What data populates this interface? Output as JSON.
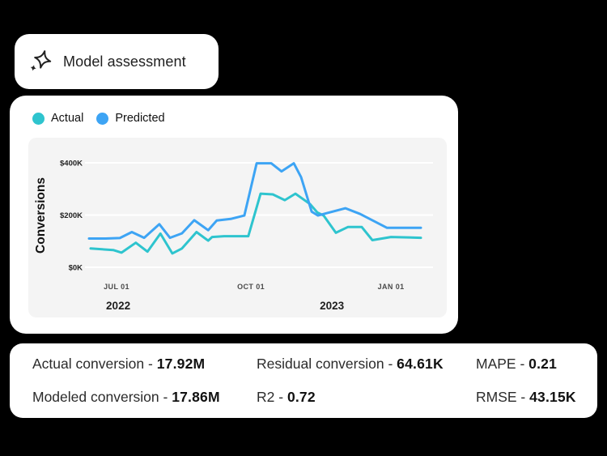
{
  "page": {
    "background": "#000000",
    "card_color": "#ffffff",
    "plot_panel_color": "#f4f4f4"
  },
  "header": {
    "title": "Model assessment",
    "icon": "sparkle-icon"
  },
  "chart_data": {
    "type": "line",
    "title": "",
    "xlabel": "",
    "ylabel": "Conversions",
    "grid": true,
    "legend_position": "top-left",
    "units": "y values = conversions in USD thousands (K); t = fraction of time axis (mid-Jun 2022 to late-Jan 2023)",
    "ylim_k": [
      0,
      480
    ],
    "y_ticks": [
      {
        "label": "$0K",
        "value_k": 0
      },
      {
        "label": "$200K",
        "value_k": 200
      },
      {
        "label": "$400K",
        "value_k": 400
      }
    ],
    "x_ticks": [
      {
        "label": "JUL 01",
        "t": 0.083
      },
      {
        "label": "OCT 01",
        "t": 0.488
      },
      {
        "label": "JAN 01",
        "t": 0.91
      }
    ],
    "year_labels": [
      {
        "label": "2022",
        "t": 0.088
      },
      {
        "label": "2023",
        "t": 0.732
      }
    ],
    "series": [
      {
        "name": "Actual",
        "color": "#2EC4CE",
        "points": [
          [
            0.005,
            72
          ],
          [
            0.073,
            66
          ],
          [
            0.098,
            56
          ],
          [
            0.141,
            94
          ],
          [
            0.176,
            60
          ],
          [
            0.215,
            129
          ],
          [
            0.251,
            53
          ],
          [
            0.28,
            72
          ],
          [
            0.324,
            135
          ],
          [
            0.359,
            102
          ],
          [
            0.371,
            116
          ],
          [
            0.407,
            119
          ],
          [
            0.48,
            119
          ],
          [
            0.517,
            282
          ],
          [
            0.554,
            279
          ],
          [
            0.59,
            257
          ],
          [
            0.622,
            282
          ],
          [
            0.666,
            242
          ],
          [
            0.688,
            210
          ],
          [
            0.707,
            198
          ],
          [
            0.744,
            132
          ],
          [
            0.78,
            154
          ],
          [
            0.822,
            154
          ],
          [
            0.854,
            104
          ],
          [
            0.91,
            116
          ],
          [
            1.0,
            113
          ]
        ]
      },
      {
        "name": "Predicted",
        "color": "#3DA4F4",
        "points": [
          [
            0.0,
            110
          ],
          [
            0.05,
            110
          ],
          [
            0.093,
            112
          ],
          [
            0.129,
            135
          ],
          [
            0.166,
            113
          ],
          [
            0.212,
            165
          ],
          [
            0.244,
            113
          ],
          [
            0.28,
            130
          ],
          [
            0.317,
            180
          ],
          [
            0.359,
            142
          ],
          [
            0.385,
            179
          ],
          [
            0.427,
            185
          ],
          [
            0.468,
            198
          ],
          [
            0.505,
            398
          ],
          [
            0.549,
            398
          ],
          [
            0.58,
            367
          ],
          [
            0.617,
            398
          ],
          [
            0.639,
            345
          ],
          [
            0.671,
            213
          ],
          [
            0.69,
            198
          ],
          [
            0.707,
            204
          ],
          [
            0.773,
            226
          ],
          [
            0.817,
            204
          ],
          [
            0.898,
            151
          ],
          [
            1.0,
            151
          ]
        ]
      }
    ]
  },
  "metrics": {
    "separator": " - ",
    "items": [
      {
        "label": "Actual conversion",
        "value": "17.92M"
      },
      {
        "label": "Modeled conversion",
        "value": "17.86M"
      },
      {
        "label": "Residual conversion",
        "value": "64.61K"
      },
      {
        "label": "R2",
        "value": "0.72"
      },
      {
        "label": "MAPE",
        "value": "0.21"
      },
      {
        "label": "RMSE",
        "value": "43.15K"
      }
    ]
  }
}
